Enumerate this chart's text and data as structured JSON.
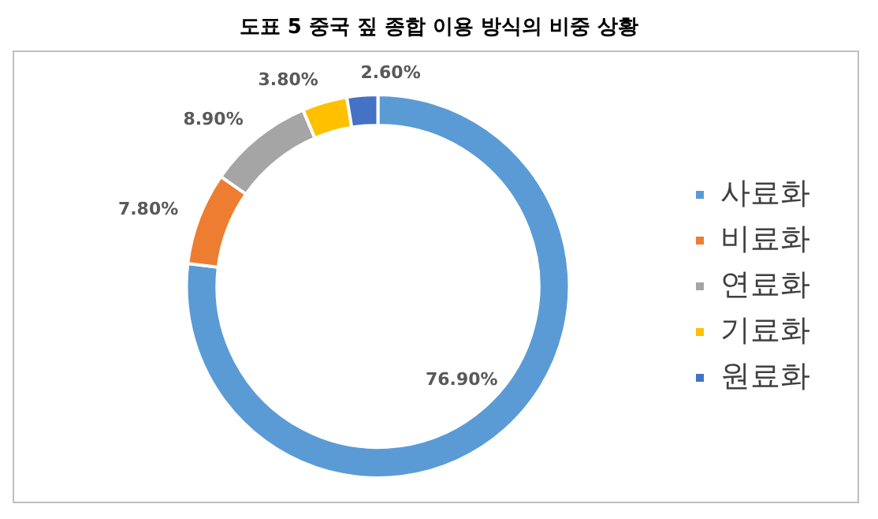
{
  "chart_data": {
    "type": "donut",
    "title": "도표 5 중국 짚 종합 이용 방식의 비중 상황",
    "categories": [
      "사료화",
      "비료화",
      "연료화",
      "기료화",
      "원료화"
    ],
    "values": [
      76.9,
      7.8,
      8.9,
      3.8,
      2.6
    ],
    "colors": [
      "#5b9bd5",
      "#ed7d31",
      "#a5a5a5",
      "#ffc000",
      "#4472c4"
    ],
    "value_labels": [
      "76.90%",
      "7.80%",
      "8.90%",
      "3.80%",
      "2.60%"
    ],
    "legend": "right"
  }
}
